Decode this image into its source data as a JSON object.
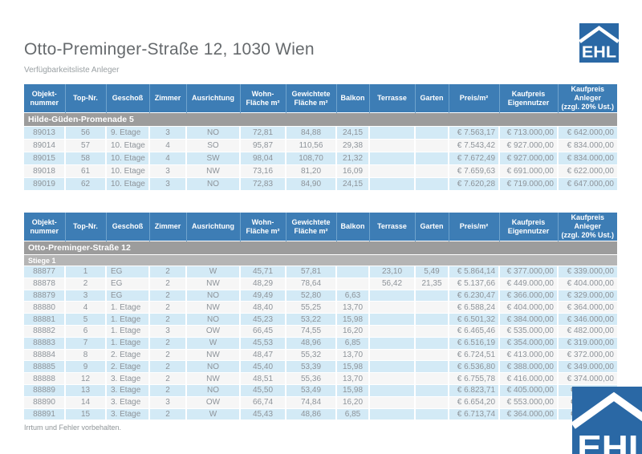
{
  "page": {
    "title": "Otto-Preminger-Straße 12, 1030 Wien",
    "subtitle": "Verfügbarkeitsliste Anleger",
    "footer": "Irrtum und Fehler vorbehalten.",
    "logo_text": "EHL"
  },
  "colors": {
    "header_blue": "#3d7db5",
    "logo_blue": "#2a68a5",
    "section_gray": "#9c9c9c",
    "subsection_gray": "#b5b5b5",
    "row_light_blue": "#d3eaf6",
    "row_white": "#f6f6f6",
    "cell_text_gray": "#8d9399"
  },
  "table_headers": [
    "Objekt-\nnummer",
    "Top-Nr.",
    "Geschoß",
    "Zimmer",
    "Ausrichtung",
    "Wohn-\nFläche m²",
    "Gewichtete\nFläche m²",
    "Balkon",
    "Terrasse",
    "Garten",
    "Preis/m²",
    "Kaufpreis\nEigennutzer",
    "Kaufpreis\nAnleger\n(zzgl. 20% Ust.)"
  ],
  "tables": [
    {
      "section": "Hilde-Güden-Promenade 5",
      "subsection": null,
      "rows": [
        [
          "89013",
          "56",
          "9. Etage",
          "3",
          "NO",
          "72,81",
          "84,88",
          "24,15",
          "",
          "",
          "€ 7.563,17",
          "€ 713.000,00",
          "€ 642.000,00"
        ],
        [
          "89014",
          "57",
          "10. Etage",
          "4",
          "SO",
          "95,87",
          "110,56",
          "29,38",
          "",
          "",
          "€ 7.543,42",
          "€ 927.000,00",
          "€ 834.000,00"
        ],
        [
          "89015",
          "58",
          "10. Etage",
          "4",
          "SW",
          "98,04",
          "108,70",
          "21,32",
          "",
          "",
          "€ 7.672,49",
          "€ 927.000,00",
          "€ 834.000,00"
        ],
        [
          "89018",
          "61",
          "10. Etage",
          "3",
          "NW",
          "73,16",
          "81,20",
          "16,09",
          "",
          "",
          "€ 7.659,63",
          "€ 691.000,00",
          "€ 622.000,00"
        ],
        [
          "89019",
          "62",
          "10. Etage",
          "3",
          "NO",
          "72,83",
          "84,90",
          "24,15",
          "",
          "",
          "€ 7.620,28",
          "€ 719.000,00",
          "€ 647.000,00"
        ]
      ]
    },
    {
      "section": "Otto-Preminger-Straße 12",
      "subsection": "Stiege 1",
      "rows": [
        [
          "88877",
          "1",
          "EG",
          "2",
          "W",
          "45,71",
          "57,81",
          "",
          "23,10",
          "5,49",
          "€ 5.864,14",
          "€ 377.000,00",
          "€ 339.000,00"
        ],
        [
          "88878",
          "2",
          "EG",
          "2",
          "NW",
          "48,29",
          "78,64",
          "",
          "56,42",
          "21,35",
          "€ 5.137,66",
          "€ 449.000,00",
          "€ 404.000,00"
        ],
        [
          "88879",
          "3",
          "EG",
          "2",
          "NO",
          "49,49",
          "52,80",
          "6,63",
          "",
          "",
          "€ 6.230,47",
          "€ 366.000,00",
          "€ 329.000,00"
        ],
        [
          "88880",
          "4",
          "1. Etage",
          "2",
          "NW",
          "48,40",
          "55,25",
          "13,70",
          "",
          "",
          "€ 6.588,24",
          "€ 404.000,00",
          "€ 364.000,00"
        ],
        [
          "88881",
          "5",
          "1. Etage",
          "2",
          "NO",
          "45,23",
          "53,22",
          "15,98",
          "",
          "",
          "€ 6.501,32",
          "€ 384.000,00",
          "€ 346.000,00"
        ],
        [
          "88882",
          "6",
          "1. Etage",
          "3",
          "OW",
          "66,45",
          "74,55",
          "16,20",
          "",
          "",
          "€ 6.465,46",
          "€ 535.000,00",
          "€ 482.000,00"
        ],
        [
          "88883",
          "7",
          "1. Etage",
          "2",
          "W",
          "45,53",
          "48,96",
          "6,85",
          "",
          "",
          "€ 6.516,19",
          "€ 354.000,00",
          "€ 319.000,00"
        ],
        [
          "88884",
          "8",
          "2. Etage",
          "2",
          "NW",
          "48,47",
          "55,32",
          "13,70",
          "",
          "",
          "€ 6.724,51",
          "€ 413.000,00",
          "€ 372.000,00"
        ],
        [
          "88885",
          "9",
          "2. Etage",
          "2",
          "NO",
          "45,40",
          "53,39",
          "15,98",
          "",
          "",
          "€ 6.536,80",
          "€ 388.000,00",
          "€ 349.000,00"
        ],
        [
          "88888",
          "12",
          "3. Etage",
          "2",
          "NW",
          "48,51",
          "55,36",
          "13,70",
          "",
          "",
          "€ 6.755,78",
          "€ 416.000,00",
          "€ 374.000,00"
        ],
        [
          "88889",
          "13",
          "3. Etage",
          "2",
          "NO",
          "45,50",
          "53,49",
          "15,98",
          "",
          "",
          "€ 6.823,71",
          "€ 405.000,00",
          "€"
        ],
        [
          "88890",
          "14",
          "3. Etage",
          "3",
          "OW",
          "66,74",
          "74,84",
          "16,20",
          "",
          "",
          "€ 6.654,20",
          "€ 553.000,00",
          "€"
        ],
        [
          "88891",
          "15",
          "3. Etage",
          "2",
          "W",
          "45,43",
          "48,86",
          "6,85",
          "",
          "",
          "€ 6.713,74",
          "€ 364.000,00",
          "€"
        ]
      ]
    }
  ]
}
